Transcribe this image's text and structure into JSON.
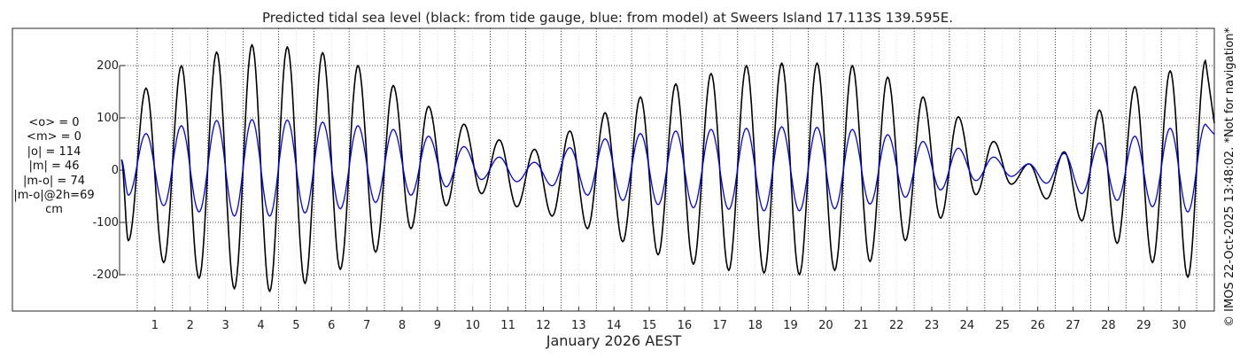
{
  "chart_data": {
    "type": "line",
    "title": "Predicted tidal sea level (black: from tide gauge, blue: from model) at Sweers Island 17.113S 139.595E.",
    "xlabel": "January 2026 AEST",
    "ylabel": "",
    "units": "cm",
    "xlim": [
      0.0,
      31.0
    ],
    "ylim": [
      -270,
      270
    ],
    "grid": true,
    "x_ticks": [
      1,
      2,
      3,
      4,
      5,
      6,
      7,
      8,
      9,
      10,
      11,
      12,
      13,
      14,
      15,
      16,
      17,
      18,
      19,
      20,
      21,
      22,
      23,
      24,
      25,
      26,
      27,
      28,
      29,
      30
    ],
    "x_tick_labels": [
      "1",
      "2",
      "3",
      "4",
      "5",
      "6",
      "7",
      "8",
      "9",
      "10",
      "11",
      "12",
      "13",
      "14",
      "15",
      "16",
      "17",
      "18",
      "19",
      "20",
      "21",
      "22",
      "23",
      "24",
      "25",
      "26",
      "27",
      "28",
      "29",
      "30"
    ],
    "y_ticks": [
      -200,
      -100,
      0,
      100,
      200
    ],
    "y_tick_labels": [
      "-200",
      "-100",
      "0",
      "100",
      "200"
    ],
    "stats": [
      "<o> = 0",
      "<m> = 0",
      "|o| = 114",
      "|m| = 46",
      "|m-o| = 74",
      "|m-o|@2h=69",
      "cm"
    ],
    "credit": "© IMOS 22-Oct-2025 13:48:02. *Not for navigation*",
    "series": [
      {
        "name": "tide gauge",
        "color": "#000000",
        "highs": [
          [
            0.75,
            157
          ],
          [
            1.75,
            200
          ],
          [
            2.75,
            226
          ],
          [
            3.75,
            240
          ],
          [
            4.75,
            236
          ],
          [
            5.75,
            225
          ],
          [
            6.75,
            200
          ],
          [
            7.75,
            162
          ],
          [
            8.75,
            122
          ],
          [
            9.75,
            88
          ],
          [
            10.75,
            58
          ],
          [
            11.75,
            40
          ],
          [
            12.75,
            75
          ],
          [
            13.75,
            110
          ],
          [
            14.75,
            140
          ],
          [
            15.75,
            165
          ],
          [
            16.75,
            185
          ],
          [
            17.75,
            200
          ],
          [
            18.75,
            205
          ],
          [
            19.75,
            205
          ],
          [
            20.75,
            200
          ],
          [
            21.75,
            178
          ],
          [
            22.75,
            140
          ],
          [
            23.75,
            102
          ],
          [
            24.75,
            55
          ],
          [
            25.75,
            12
          ],
          [
            26.75,
            35
          ],
          [
            27.75,
            115
          ],
          [
            28.75,
            160
          ],
          [
            29.75,
            190
          ],
          [
            30.75,
            210
          ]
        ],
        "lows": [
          [
            0.25,
            -135
          ],
          [
            1.25,
            -177
          ],
          [
            2.25,
            -207
          ],
          [
            3.25,
            -227
          ],
          [
            4.25,
            -232
          ],
          [
            5.25,
            -217
          ],
          [
            6.25,
            -190
          ],
          [
            7.25,
            -157
          ],
          [
            8.25,
            -112
          ],
          [
            9.25,
            -68
          ],
          [
            10.25,
            -45
          ],
          [
            11.25,
            -70
          ],
          [
            12.25,
            -88
          ],
          [
            13.25,
            -112
          ],
          [
            14.25,
            -137
          ],
          [
            15.25,
            -162
          ],
          [
            16.25,
            -180
          ],
          [
            17.25,
            -192
          ],
          [
            18.25,
            -197
          ],
          [
            19.25,
            -200
          ],
          [
            20.25,
            -192
          ],
          [
            21.25,
            -175
          ],
          [
            22.25,
            -135
          ],
          [
            23.25,
            -92
          ],
          [
            24.25,
            -47
          ],
          [
            25.25,
            -27
          ],
          [
            26.25,
            -55
          ],
          [
            27.25,
            -97
          ],
          [
            28.25,
            -140
          ],
          [
            29.25,
            -177
          ],
          [
            30.25,
            -205
          ]
        ]
      },
      {
        "name": "model",
        "color": "#0000ff",
        "highs": [
          [
            0.75,
            70
          ],
          [
            1.75,
            85
          ],
          [
            2.75,
            95
          ],
          [
            3.75,
            97
          ],
          [
            4.75,
            96
          ],
          [
            5.75,
            92
          ],
          [
            6.75,
            85
          ],
          [
            7.75,
            78
          ],
          [
            8.75,
            65
          ],
          [
            9.75,
            45
          ],
          [
            10.75,
            25
          ],
          [
            11.75,
            15
          ],
          [
            12.75,
            43
          ],
          [
            13.75,
            60
          ],
          [
            14.75,
            70
          ],
          [
            15.75,
            75
          ],
          [
            16.75,
            78
          ],
          [
            17.75,
            80
          ],
          [
            18.75,
            83
          ],
          [
            19.75,
            82
          ],
          [
            20.75,
            78
          ],
          [
            21.75,
            68
          ],
          [
            22.75,
            55
          ],
          [
            23.75,
            42
          ],
          [
            24.75,
            25
          ],
          [
            25.75,
            12
          ],
          [
            26.75,
            32
          ],
          [
            27.75,
            52
          ],
          [
            28.75,
            65
          ],
          [
            29.75,
            80
          ],
          [
            30.75,
            88
          ]
        ],
        "lows": [
          [
            0.25,
            -48
          ],
          [
            1.25,
            -68
          ],
          [
            2.25,
            -80
          ],
          [
            3.25,
            -88
          ],
          [
            4.25,
            -88
          ],
          [
            5.25,
            -82
          ],
          [
            6.25,
            -74
          ],
          [
            7.25,
            -62
          ],
          [
            8.25,
            -48
          ],
          [
            9.25,
            -32
          ],
          [
            10.25,
            -18
          ],
          [
            11.25,
            -22
          ],
          [
            12.25,
            -30
          ],
          [
            13.25,
            -48
          ],
          [
            14.25,
            -58
          ],
          [
            15.25,
            -66
          ],
          [
            16.25,
            -72
          ],
          [
            17.25,
            -75
          ],
          [
            18.25,
            -78
          ],
          [
            19.25,
            -78
          ],
          [
            20.25,
            -74
          ],
          [
            21.25,
            -65
          ],
          [
            22.25,
            -52
          ],
          [
            23.25,
            -38
          ],
          [
            24.25,
            -20
          ],
          [
            25.25,
            -12
          ],
          [
            26.25,
            -25
          ],
          [
            27.25,
            -45
          ],
          [
            28.25,
            -58
          ],
          [
            29.25,
            -70
          ],
          [
            30.25,
            -80
          ]
        ]
      }
    ]
  }
}
